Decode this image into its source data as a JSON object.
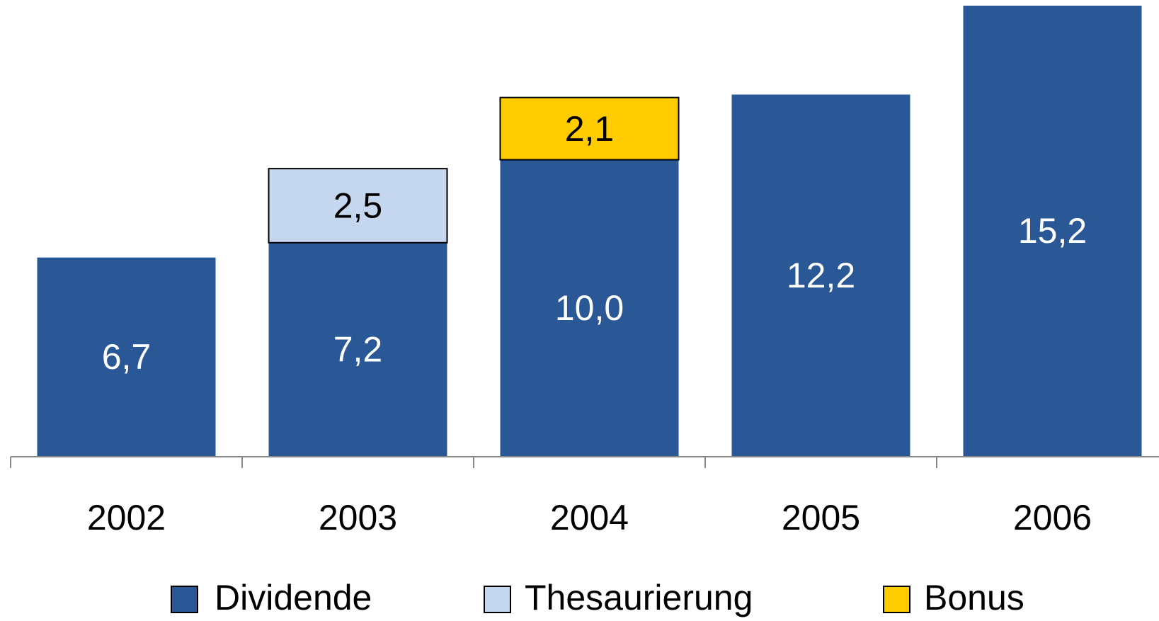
{
  "chart_data": {
    "type": "bar",
    "stacked": true,
    "categories": [
      "2002",
      "2003",
      "2004",
      "2005",
      "2006"
    ],
    "series": [
      {
        "name": "Dividende",
        "color": "#2a5796",
        "label_color": "#ffffff",
        "values": [
          6.7,
          7.2,
          10.0,
          12.2,
          15.2
        ],
        "value_labels": [
          "6,7",
          "7,2",
          "10,0",
          "12,2",
          "15,2"
        ]
      },
      {
        "name": "Thesaurierung",
        "color": "#c5d7ee",
        "label_color": "#000000",
        "values": [
          null,
          2.5,
          null,
          null,
          null
        ],
        "value_labels": [
          null,
          "2,5",
          null,
          null,
          null
        ]
      },
      {
        "name": "Bonus",
        "color": "#ffcc00",
        "label_color": "#000000",
        "values": [
          null,
          null,
          2.1,
          null,
          null
        ],
        "value_labels": [
          null,
          null,
          "2,1",
          null,
          null
        ]
      }
    ],
    "ylim": [
      0,
      15.2
    ],
    "legend": "bottom"
  }
}
